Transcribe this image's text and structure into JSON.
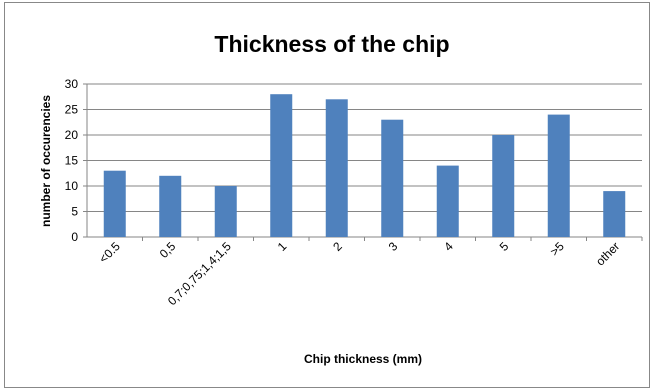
{
  "chart_data": {
    "type": "bar",
    "title": "Thickness of the chip",
    "xlabel": "Chip thickness (mm)",
    "ylabel": "number of occurencies",
    "categories": [
      "<0.5",
      "0,5",
      "0,7;0,75;1,4;1,5",
      "1",
      "2",
      "3",
      "4",
      "5",
      ">5",
      "other"
    ],
    "values": [
      13,
      12,
      10,
      28,
      27,
      23,
      14,
      20,
      24,
      9
    ],
    "ylim": [
      0,
      30
    ],
    "yticks": [
      0,
      5,
      10,
      15,
      20,
      25,
      30
    ],
    "grid": true,
    "legend": "none",
    "bar_color": "#4F81BD",
    "grid_color": "#868686"
  }
}
